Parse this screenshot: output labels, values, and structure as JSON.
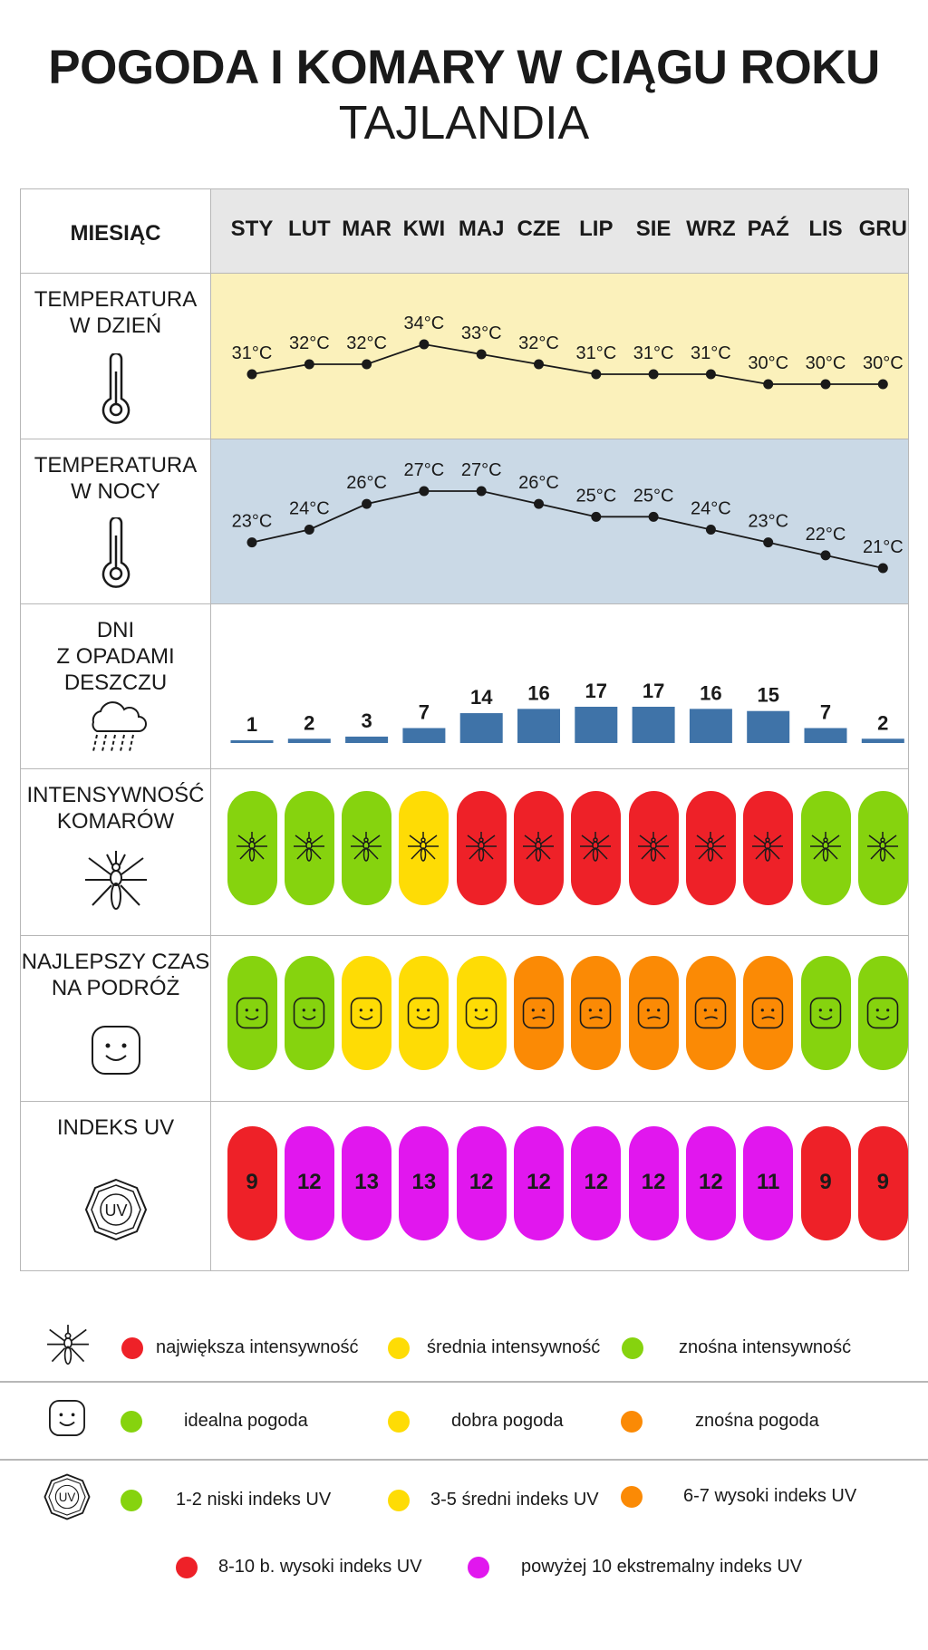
{
  "title": "POGODA I KOMARY W CIĄGU ROKU",
  "subtitle": "TAJLANDIA",
  "rows": {
    "months_label": "MIESIĄC",
    "day_temp_label": "TEMPERATURA\nW DZIEŃ",
    "night_temp_label": "TEMPERATURA\nW NOCY",
    "rain_label": "DNI\nZ OPADAMI\nDESZCZU",
    "mosquito_label": "INTENSYWNOŚĆ\nKOMARÓW",
    "travel_label": "NAJLEPSZY CZAS\nNA PODRÓŻ",
    "uv_label": "INDEKS UV"
  },
  "icons": {
    "thermometer": "thermometer-icon",
    "rain": "rain-cloud-icon",
    "mosquito": "mosquito-icon",
    "smiley": "smiley-icon",
    "uv": "uv-badge-icon"
  },
  "colors": {
    "red": "#ee2128",
    "yellow": "#fedc05",
    "green": "#86d30e",
    "orange": "#fb8a05",
    "magenta": "#e117ee",
    "day_bg": "#fbf1bb",
    "night_bg": "#cad9e6",
    "bar": "#3f73a8"
  },
  "chart_data": {
    "type": "table",
    "months": [
      "STY",
      "LUT",
      "MAR",
      "KWI",
      "MAJ",
      "CZE",
      "LIP",
      "SIE",
      "WRZ",
      "PAŹ",
      "LIS",
      "GRU"
    ],
    "day_temp": {
      "values": [
        31,
        32,
        32,
        34,
        33,
        32,
        31,
        31,
        31,
        30,
        30,
        30
      ],
      "labels": [
        "31°C",
        "32°C",
        "32°C",
        "34°C",
        "33°C",
        "32°C",
        "31°C",
        "31°C",
        "31°C",
        "30°C",
        "30°C",
        "30°C"
      ]
    },
    "night_temp": {
      "values": [
        23,
        24,
        26,
        27,
        27,
        26,
        25,
        25,
        24,
        23,
        22,
        21
      ],
      "labels": [
        "23°C",
        "24°C",
        "26°C",
        "27°C",
        "27°C",
        "26°C",
        "25°C",
        "25°C",
        "24°C",
        "23°C",
        "22°C",
        "21°C"
      ]
    },
    "rain_days": [
      1,
      2,
      3,
      7,
      14,
      16,
      17,
      17,
      16,
      15,
      7,
      2
    ],
    "mosquito_intensity": [
      "green",
      "green",
      "green",
      "yellow",
      "red",
      "red",
      "red",
      "red",
      "red",
      "red",
      "green",
      "green"
    ],
    "travel": [
      "green",
      "green",
      "yellow",
      "yellow",
      "yellow",
      "orange",
      "orange",
      "orange",
      "orange",
      "orange",
      "green",
      "green"
    ],
    "uv_index": [
      9,
      12,
      13,
      13,
      12,
      12,
      12,
      12,
      12,
      11,
      9,
      9
    ],
    "uv_colors": [
      "red",
      "magenta",
      "magenta",
      "magenta",
      "magenta",
      "magenta",
      "magenta",
      "magenta",
      "magenta",
      "magenta",
      "red",
      "red"
    ]
  },
  "legend": {
    "mosquito": [
      {
        "color": "red",
        "label": "największa intensywność"
      },
      {
        "color": "yellow",
        "label": "średnia intensywność"
      },
      {
        "color": "green",
        "label": "znośna intensywność"
      }
    ],
    "travel": [
      {
        "color": "green",
        "label": "idealna pogoda"
      },
      {
        "color": "yellow",
        "label": "dobra pogoda"
      },
      {
        "color": "orange",
        "label": "znośna pogoda"
      }
    ],
    "uv": [
      {
        "color": "green",
        "label": "1-2 niski indeks UV"
      },
      {
        "color": "yellow",
        "label": "3-5 średni indeks UV"
      },
      {
        "color": "orange",
        "label": "6-7 wysoki indeks UV"
      },
      {
        "color": "red",
        "label": "8-10 b. wysoki indeks UV"
      },
      {
        "color": "magenta",
        "label": "powyżej 10 ekstremalny indeks UV"
      }
    ],
    "uv_icon_text": "UV"
  }
}
